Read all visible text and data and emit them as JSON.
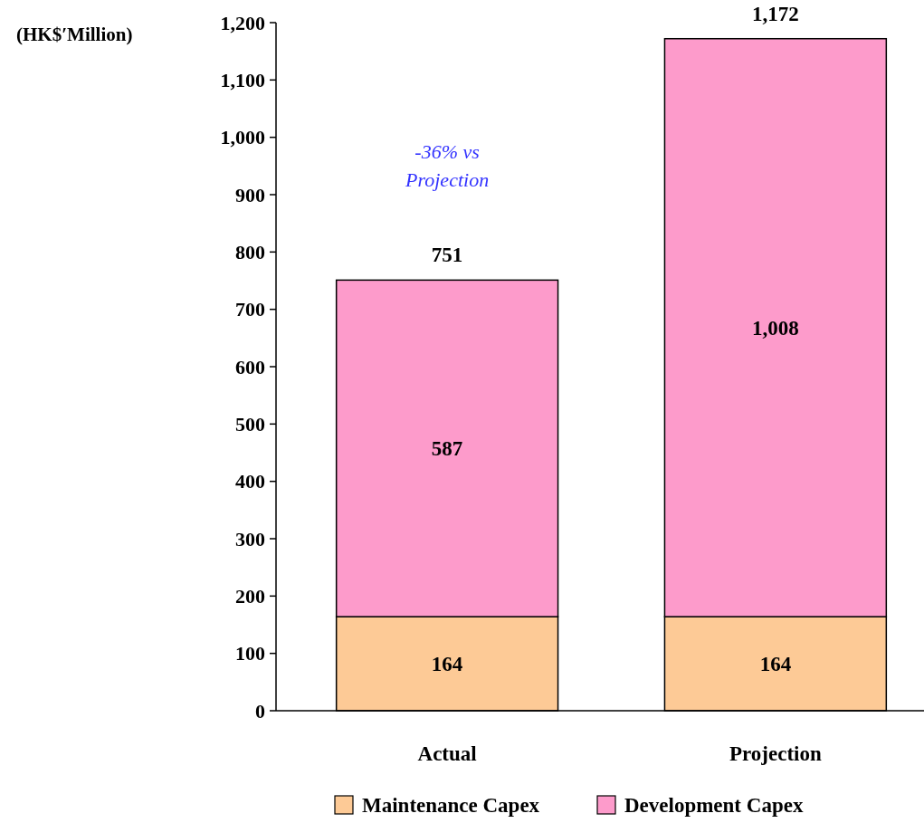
{
  "chart_data": {
    "type": "bar",
    "stacked": true,
    "categories": [
      "Actual",
      "Projection"
    ],
    "series": [
      {
        "name": "Maintenance Capex",
        "color": "#fdca96",
        "values": [
          164,
          164
        ],
        "value_labels": [
          "164",
          "164"
        ]
      },
      {
        "name": "Development Capex",
        "color": "#fd9bcb",
        "values": [
          587,
          1008
        ],
        "value_labels": [
          "587",
          "1,008"
        ]
      }
    ],
    "totals": [
      "751",
      "1,172"
    ],
    "ylim": [
      0,
      1200
    ],
    "yticks": [
      0,
      100,
      200,
      300,
      400,
      500,
      600,
      700,
      800,
      900,
      {
        "value": 1000,
        "label": "1,000"
      },
      {
        "value": 1100,
        "label": "1,100"
      },
      {
        "value": 1200,
        "label": "1,200"
      }
    ],
    "annotations": [
      "(HK$′Million)",
      "-36% vs Projection"
    ],
    "legend": "bottom",
    "grid": false
  }
}
